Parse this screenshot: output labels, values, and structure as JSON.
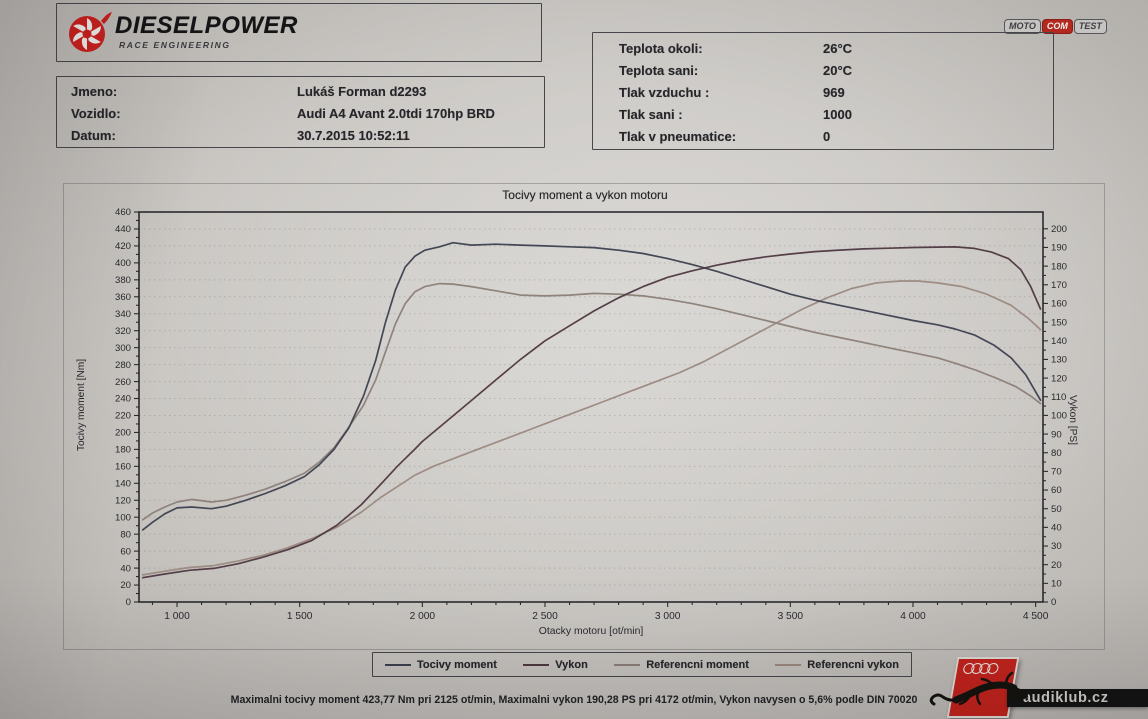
{
  "header": {
    "brand": "DIESELPOWER",
    "subtitle": "RACE ENGINEERING"
  },
  "motocom": {
    "seg1": "MOTO",
    "seg2": "COM",
    "seg3": "TEST"
  },
  "info_left": {
    "rows": [
      {
        "label": "Jmeno:",
        "value": "Lukáš Forman d2293"
      },
      {
        "label": "Vozidlo:",
        "value": "Audi A4 Avant 2.0tdi 170hp BRD"
      },
      {
        "label": "Datum:",
        "value": "30.7.2015 10:52:11"
      }
    ]
  },
  "info_right": {
    "rows": [
      {
        "label": "Teplota okoli:",
        "value": "26°C"
      },
      {
        "label": "Teplota sani:",
        "value": "20°C"
      },
      {
        "label": "Tlak vzduchu :",
        "value": "969"
      },
      {
        "label": "Tlak sani :",
        "value": "1000"
      },
      {
        "label": "Tlak v pneumatice:",
        "value": "0"
      }
    ]
  },
  "chart_data": {
    "type": "line",
    "title": "Tocivy moment a vykon motoru",
    "xlabel": "Otacky motoru [ot/min]",
    "ylabel_left": "Tocivy moment [Nm]",
    "ylabel_right": "Vykon [PS]",
    "x_range": [
      845,
      4530
    ],
    "x_ticks": [
      1000,
      1500,
      2000,
      2500,
      3000,
      3500,
      4000,
      4500
    ],
    "x_minor_step": 100,
    "y_left": {
      "min": 0,
      "max": 460,
      "step": 20,
      "minor_step": 10,
      "unit": "Nm"
    },
    "y_right": {
      "min": 0,
      "max": 200,
      "step": 10,
      "minor_step": 5,
      "unit": "PS",
      "value_at_top": 209
    },
    "grid": "horizontal-dotted",
    "legend_position": "bottom",
    "series": [
      {
        "name": "Tocivy moment",
        "axis": "nm",
        "color": "#3c3f4e",
        "points": [
          [
            860,
            85
          ],
          [
            900,
            94
          ],
          [
            950,
            104
          ],
          [
            1000,
            111
          ],
          [
            1060,
            112
          ],
          [
            1140,
            110
          ],
          [
            1200,
            113
          ],
          [
            1280,
            120
          ],
          [
            1360,
            128
          ],
          [
            1440,
            137
          ],
          [
            1520,
            148
          ],
          [
            1580,
            162
          ],
          [
            1640,
            180
          ],
          [
            1700,
            205
          ],
          [
            1760,
            243
          ],
          [
            1810,
            285
          ],
          [
            1850,
            330
          ],
          [
            1890,
            368
          ],
          [
            1930,
            395
          ],
          [
            1970,
            408
          ],
          [
            2010,
            415
          ],
          [
            2070,
            419
          ],
          [
            2125,
            423.8
          ],
          [
            2200,
            421
          ],
          [
            2300,
            422
          ],
          [
            2400,
            421
          ],
          [
            2500,
            420
          ],
          [
            2600,
            419
          ],
          [
            2700,
            418
          ],
          [
            2800,
            415
          ],
          [
            2900,
            411
          ],
          [
            3000,
            405
          ],
          [
            3100,
            398
          ],
          [
            3200,
            390
          ],
          [
            3300,
            381
          ],
          [
            3400,
            372
          ],
          [
            3500,
            363
          ],
          [
            3600,
            356
          ],
          [
            3700,
            350
          ],
          [
            3800,
            344
          ],
          [
            3900,
            338
          ],
          [
            4000,
            332
          ],
          [
            4100,
            327
          ],
          [
            4172,
            322
          ],
          [
            4250,
            315
          ],
          [
            4330,
            303
          ],
          [
            4400,
            288
          ],
          [
            4460,
            268
          ],
          [
            4500,
            248
          ],
          [
            4520,
            238
          ]
        ]
      },
      {
        "name": "Vykon",
        "axis": "ps",
        "color": "#4e3740",
        "points": [
          [
            860,
            13
          ],
          [
            950,
            15
          ],
          [
            1050,
            17
          ],
          [
            1150,
            18
          ],
          [
            1250,
            20.5
          ],
          [
            1350,
            24
          ],
          [
            1450,
            28
          ],
          [
            1550,
            33
          ],
          [
            1650,
            41
          ],
          [
            1750,
            52
          ],
          [
            1830,
            63
          ],
          [
            1900,
            73
          ],
          [
            1970,
            82
          ],
          [
            2000,
            86
          ],
          [
            2100,
            97
          ],
          [
            2200,
            108
          ],
          [
            2300,
            119
          ],
          [
            2400,
            130
          ],
          [
            2500,
            140
          ],
          [
            2600,
            148
          ],
          [
            2700,
            156
          ],
          [
            2800,
            163
          ],
          [
            2900,
            169
          ],
          [
            3000,
            174
          ],
          [
            3100,
            177.5
          ],
          [
            3200,
            180.5
          ],
          [
            3300,
            183
          ],
          [
            3400,
            185
          ],
          [
            3500,
            186.5
          ],
          [
            3600,
            187.8
          ],
          [
            3700,
            188.6
          ],
          [
            3800,
            189.2
          ],
          [
            3900,
            189.6
          ],
          [
            4000,
            190
          ],
          [
            4100,
            190.2
          ],
          [
            4172,
            190.3
          ],
          [
            4250,
            189.5
          ],
          [
            4320,
            187.5
          ],
          [
            4390,
            184
          ],
          [
            4440,
            178
          ],
          [
            4480,
            169
          ],
          [
            4520,
            157
          ]
        ]
      },
      {
        "name": "Referencni moment",
        "axis": "nm",
        "color": "#8b7e77",
        "points": [
          [
            860,
            97
          ],
          [
            900,
            105
          ],
          [
            950,
            112
          ],
          [
            1000,
            118
          ],
          [
            1060,
            121
          ],
          [
            1140,
            118
          ],
          [
            1200,
            120
          ],
          [
            1280,
            126
          ],
          [
            1360,
            133
          ],
          [
            1440,
            142
          ],
          [
            1520,
            152
          ],
          [
            1580,
            165
          ],
          [
            1640,
            182
          ],
          [
            1700,
            206
          ],
          [
            1760,
            232
          ],
          [
            1810,
            262
          ],
          [
            1850,
            295
          ],
          [
            1890,
            328
          ],
          [
            1930,
            352
          ],
          [
            1970,
            366
          ],
          [
            2010,
            372
          ],
          [
            2070,
            375.5
          ],
          [
            2125,
            375
          ],
          [
            2200,
            372
          ],
          [
            2300,
            367
          ],
          [
            2400,
            362
          ],
          [
            2500,
            361
          ],
          [
            2600,
            362
          ],
          [
            2700,
            364
          ],
          [
            2800,
            363
          ],
          [
            2900,
            361
          ],
          [
            3000,
            357
          ],
          [
            3100,
            352
          ],
          [
            3200,
            346
          ],
          [
            3300,
            339
          ],
          [
            3400,
            332
          ],
          [
            3500,
            325
          ],
          [
            3600,
            318
          ],
          [
            3700,
            312
          ],
          [
            3800,
            306
          ],
          [
            3900,
            300
          ],
          [
            4000,
            294
          ],
          [
            4100,
            288
          ],
          [
            4180,
            281
          ],
          [
            4260,
            273
          ],
          [
            4340,
            264
          ],
          [
            4420,
            254
          ],
          [
            4480,
            243
          ],
          [
            4520,
            234
          ]
        ]
      },
      {
        "name": "Referencni vykon",
        "axis": "ps",
        "color": "#9a897f",
        "points": [
          [
            860,
            14.5
          ],
          [
            950,
            16.5
          ],
          [
            1050,
            18.5
          ],
          [
            1150,
            19.5
          ],
          [
            1250,
            22
          ],
          [
            1350,
            25
          ],
          [
            1450,
            29
          ],
          [
            1550,
            34
          ],
          [
            1650,
            40
          ],
          [
            1750,
            48
          ],
          [
            1830,
            56
          ],
          [
            1900,
            62
          ],
          [
            1970,
            68
          ],
          [
            2050,
            73
          ],
          [
            2150,
            78
          ],
          [
            2250,
            83
          ],
          [
            2350,
            88
          ],
          [
            2450,
            93
          ],
          [
            2550,
            98
          ],
          [
            2650,
            103
          ],
          [
            2750,
            108
          ],
          [
            2850,
            113
          ],
          [
            2950,
            118
          ],
          [
            3050,
            123
          ],
          [
            3150,
            129
          ],
          [
            3250,
            136
          ],
          [
            3350,
            143
          ],
          [
            3450,
            150
          ],
          [
            3550,
            157
          ],
          [
            3650,
            163
          ],
          [
            3750,
            168
          ],
          [
            3850,
            171
          ],
          [
            3950,
            172
          ],
          [
            4020,
            172
          ],
          [
            4100,
            171
          ],
          [
            4200,
            169
          ],
          [
            4300,
            165
          ],
          [
            4400,
            159
          ],
          [
            4470,
            152
          ],
          [
            4520,
            146
          ]
        ]
      }
    ],
    "annotations": {
      "max_torque": "423,77 Nm pri 2125 ot/min",
      "max_power": "190,28 PS pri 4172 ot/min",
      "correction": "Vykon navysen o 5,6% podle DIN 70020"
    }
  },
  "footer": {
    "summary": "Maximalni tocivy moment 423,77 Nm pri 2125 ot/min,  Maximalni vykon 190,28 PS pri 4172 ot/min,  Vykon navysen o 5,6% podle DIN 70020"
  },
  "watermark": {
    "text": "audiklub.cz"
  }
}
